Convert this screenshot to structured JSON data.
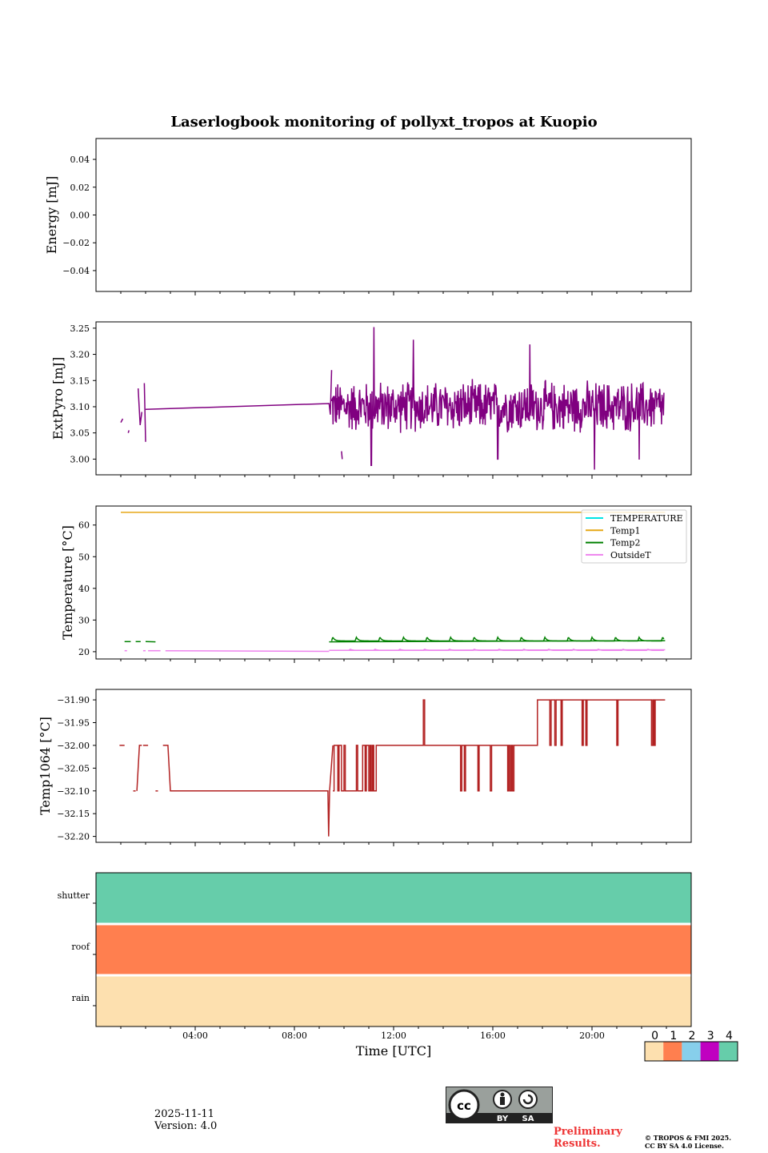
{
  "title": "Laserlogbook monitoring of pollyxt_tropos at Kuopio",
  "x_axis": {
    "label": "Time [UTC]",
    "range_hours": [
      0,
      24
    ],
    "tick_hours": [
      4,
      8,
      12,
      16,
      20
    ],
    "tick_labels": [
      "04:00",
      "08:00",
      "12:00",
      "16:00",
      "20:00"
    ]
  },
  "chart_data": [
    {
      "type": "line",
      "name": "energy",
      "ylabel": "Energy [mJ]",
      "ylim": [
        -0.055,
        0.055
      ],
      "yticks": [
        0.04,
        0.02,
        0.0,
        -0.02,
        -0.04
      ],
      "ytick_labels": [
        "0.04",
        "0.02",
        "0.00",
        "−0.02",
        "−0.04"
      ],
      "series": []
    },
    {
      "type": "line",
      "name": "extpyro",
      "ylabel": "ExtPyro [mJ]",
      "ylim": [
        2.97,
        3.262
      ],
      "yticks": [
        3.25,
        3.2,
        3.15,
        3.1,
        3.05,
        3.0
      ],
      "ytick_labels": [
        "3.25",
        "3.20",
        "3.15",
        "3.10",
        "3.05",
        "3.00"
      ],
      "series": [
        {
          "name": "ExtPyro",
          "color": "#800080",
          "segments": [
            [
              [
                1.0,
                3.07
              ],
              [
                1.08,
                3.077
              ]
            ],
            [
              [
                1.3,
                3.05
              ],
              [
                1.33,
                3.055
              ]
            ],
            [
              [
                1.7,
                3.135
              ],
              [
                1.78,
                3.065
              ],
              [
                1.85,
                3.09
              ]
            ],
            [
              [
                1.95,
                3.145
              ],
              [
                2.0,
                3.033
              ]
            ],
            [
              [
                2.0,
                3.095
              ],
              [
                9.4,
                3.106
              ],
              [
                9.45,
                3.085
              ],
              [
                9.5,
                3.17
              ]
            ],
            [
              [
                9.9,
                3.015
              ],
              [
                9.93,
                3.0
              ]
            ]
          ],
          "noisy": [
            {
              "start": 9.5,
              "end": 22.9,
              "mean": 3.1,
              "spread": 0.05,
              "points": 700,
              "peaks": [
                [
                  11.2,
                  3.252
                ],
                [
                  12.8,
                  3.228
                ],
                [
                  17.5,
                  3.219
                ],
                [
                  11.1,
                  2.988
                ],
                [
                  20.1,
                  2.98
                ],
                [
                  16.2,
                  3.0
                ],
                [
                  21.9,
                  2.999
                ]
              ]
            }
          ]
        }
      ]
    },
    {
      "type": "line",
      "name": "temperature",
      "ylabel": "Temperature [°C]",
      "ylim": [
        17.7,
        66
      ],
      "yticks": [
        60,
        50,
        40,
        30,
        20
      ],
      "ytick_labels": [
        "60",
        "50",
        "40",
        "30",
        "20"
      ],
      "legend": {
        "placement": "top-right",
        "entries": [
          "TEMPERATURE",
          "Temp1",
          "Temp2",
          "OutsideT"
        ]
      },
      "series": [
        {
          "name": "TEMPERATURE",
          "color": "#00e5e5",
          "segments": []
        },
        {
          "name": "Temp1",
          "color": "#e6a817",
          "segments": [
            [
              [
                1.0,
                64.0
              ],
              [
                22.95,
                64.0
              ]
            ]
          ]
        },
        {
          "name": "Temp2",
          "color": "#008000",
          "segments": [
            [
              [
                1.15,
                23.2
              ],
              [
                1.4,
                23.2
              ]
            ],
            [
              [
                1.6,
                23.2
              ],
              [
                1.8,
                23.2
              ]
            ],
            [
              [
                2.0,
                23.2
              ],
              [
                2.4,
                23.1
              ]
            ],
            [
              [
                9.4,
                23.1
              ],
              [
                22.95,
                23.5
              ]
            ]
          ],
          "bumps": {
            "start": 9.5,
            "end": 22.9,
            "period": 0.95,
            "base": 23.4,
            "amp": 1.2
          }
        },
        {
          "name": "OutsideT",
          "color": "#ee82ee",
          "segments": [
            [
              [
                1.15,
                20.3
              ],
              [
                1.25,
                20.3
              ]
            ],
            [
              [
                1.9,
                20.3
              ],
              [
                2.0,
                20.3
              ]
            ],
            [
              [
                2.1,
                20.3
              ],
              [
                2.6,
                20.3
              ]
            ],
            [
              [
                2.8,
                20.3
              ],
              [
                9.4,
                20.1
              ]
            ],
            [
              [
                9.4,
                20.4
              ],
              [
                22.95,
                20.6
              ]
            ]
          ],
          "bumps": {
            "start": 10.2,
            "end": 22.9,
            "period": 1.0,
            "base": 20.4,
            "amp": 0.4
          }
        }
      ]
    },
    {
      "type": "line",
      "name": "temp1064",
      "ylabel": "Temp1064 [°C]",
      "ylim": [
        -32.213,
        -31.877
      ],
      "yticks": [
        -31.9,
        -31.95,
        -32.0,
        -32.05,
        -32.1,
        -32.15,
        -32.2
      ],
      "ytick_labels": [
        "−31.90",
        "−31.95",
        "−32.00",
        "−32.05",
        "−32.10",
        "−32.15",
        "−32.20"
      ],
      "series": [
        {
          "name": "Temp1064",
          "color": "#b22222",
          "segments": [
            [
              [
                0.95,
                -32.0
              ],
              [
                1.15,
                -32.0
              ]
            ],
            [
              [
                1.5,
                -32.1
              ],
              [
                1.6,
                -32.1
              ]
            ],
            [
              [
                1.65,
                -32.1
              ],
              [
                1.75,
                -32.0
              ],
              [
                1.85,
                -32.0
              ]
            ],
            [
              [
                1.9,
                -32.0
              ],
              [
                2.1,
                -32.0
              ]
            ],
            [
              [
                2.4,
                -32.1
              ],
              [
                2.5,
                -32.1
              ]
            ],
            [
              [
                2.7,
                -32.0
              ],
              [
                2.9,
                -32.0
              ],
              [
                3.0,
                -32.1
              ],
              [
                9.35,
                -32.1
              ],
              [
                9.38,
                -32.2
              ],
              [
                9.42,
                -32.1
              ],
              [
                9.55,
                -32.0
              ]
            ]
          ],
          "steps": {
            "start": 9.55,
            "end": 22.95,
            "levels": [
              [
                9.55,
                -32.1
              ],
              [
                9.6,
                -32.0
              ],
              [
                9.75,
                -32.1
              ],
              [
                9.8,
                -32.0
              ],
              [
                9.9,
                -32.1
              ],
              [
                10.0,
                -32.0
              ],
              [
                10.05,
                -32.1
              ],
              [
                10.5,
                -32.0
              ],
              [
                10.55,
                -32.1
              ],
              [
                10.75,
                -32.0
              ],
              [
                10.85,
                -32.1
              ],
              [
                10.9,
                -32.0
              ],
              [
                11.0,
                -32.1
              ],
              [
                11.05,
                -32.0
              ],
              [
                11.1,
                -32.1
              ],
              [
                11.15,
                -32.0
              ],
              [
                11.2,
                -32.1
              ],
              [
                11.3,
                -32.0
              ],
              [
                13.2,
                -31.9
              ],
              [
                13.25,
                -32.0
              ],
              [
                14.7,
                -32.1
              ],
              [
                14.75,
                -32.0
              ],
              [
                14.85,
                -32.1
              ],
              [
                14.9,
                -32.0
              ],
              [
                15.4,
                -32.1
              ],
              [
                15.45,
                -32.0
              ],
              [
                15.9,
                -32.1
              ],
              [
                15.95,
                -32.0
              ],
              [
                16.6,
                -32.1
              ],
              [
                16.65,
                -32.0
              ],
              [
                16.7,
                -32.1
              ],
              [
                16.75,
                -32.0
              ],
              [
                16.8,
                -32.1
              ],
              [
                16.85,
                -32.0
              ],
              [
                17.8,
                -31.9
              ],
              [
                18.3,
                -32.0
              ],
              [
                18.35,
                -31.9
              ],
              [
                18.5,
                -32.0
              ],
              [
                18.55,
                -31.9
              ],
              [
                18.75,
                -32.0
              ],
              [
                18.8,
                -31.9
              ],
              [
                19.6,
                -32.0
              ],
              [
                19.65,
                -31.9
              ],
              [
                19.75,
                -32.0
              ],
              [
                19.8,
                -31.9
              ],
              [
                21.0,
                -32.0
              ],
              [
                21.05,
                -31.9
              ],
              [
                22.4,
                -32.0
              ],
              [
                22.45,
                -31.9
              ],
              [
                22.5,
                -32.0
              ],
              [
                22.55,
                -31.9
              ],
              [
                22.95,
                -31.9
              ]
            ]
          }
        }
      ]
    },
    {
      "type": "heatmap",
      "name": "status",
      "rows": [
        "shutter",
        "roof",
        "rain"
      ],
      "row_status": [
        4,
        1,
        0
      ],
      "colorbar": {
        "ticks": [
          "0",
          "1",
          "2",
          "3",
          "4"
        ],
        "colors": [
          "#fde0af",
          "#ff7f4f",
          "#87cfeb",
          "#c000c0",
          "#66cdaa"
        ]
      }
    }
  ],
  "footer": {
    "date": "2025-11-11",
    "version": "Version: 4.0",
    "preliminary_line1": "Preliminary",
    "preliminary_line2": "Results.",
    "copyright_line1": "© TROPOS & FMI 2025.",
    "copyright_line2": "CC BY SA 4.0 License.",
    "license_badge": {
      "cc": "cc",
      "by": "BY",
      "sa": "SA"
    }
  }
}
